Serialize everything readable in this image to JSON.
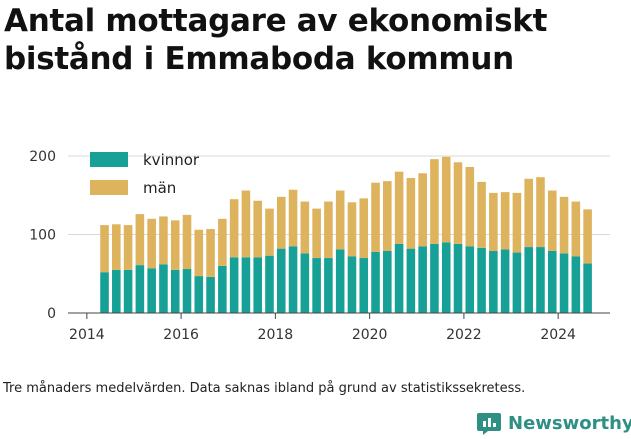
{
  "title": "Antal mottagare av ekonomiskt bistånd i Emmaboda kommun",
  "footnote": "Tre månaders medelvärden. Data saknas ibland på grund av statistikssekretess.",
  "brand": {
    "name": "Newsworthy",
    "icon": "newsworthy-logo-icon"
  },
  "colors": {
    "kvinnor": "#16a096",
    "man": "#deb35e",
    "grid": "#d9d9d9"
  },
  "chart_data": {
    "type": "bar",
    "stacked": true,
    "title": "Antal mottagare av ekonomiskt bistånd i Emmaboda kommun",
    "xlabel": "",
    "ylabel": "",
    "ylim": [
      0,
      200
    ],
    "yticks": [
      0,
      100,
      200
    ],
    "xlim": [
      2013.6,
      2025.1
    ],
    "xticks": [
      "2014",
      "2016",
      "2018",
      "2020",
      "2022",
      "2024"
    ],
    "grid": true,
    "legend_position": "top-left",
    "x": [
      2014.375,
      2014.625,
      2014.875,
      2015.125,
      2015.375,
      2015.625,
      2015.875,
      2016.125,
      2016.375,
      2016.625,
      2016.875,
      2017.125,
      2017.375,
      2017.625,
      2017.875,
      2018.125,
      2018.375,
      2018.625,
      2018.875,
      2019.125,
      2019.375,
      2019.625,
      2019.875,
      2020.125,
      2020.375,
      2020.625,
      2020.875,
      2021.125,
      2021.375,
      2021.625,
      2021.875,
      2022.125,
      2022.375,
      2022.625,
      2022.875,
      2023.125,
      2023.375,
      2023.625,
      2023.875,
      2024.125,
      2024.375,
      2024.625
    ],
    "series": [
      {
        "name": "kvinnor",
        "values": [
          52,
          55,
          55,
          61,
          57,
          62,
          55,
          56,
          47,
          46,
          60,
          71,
          71,
          71,
          73,
          82,
          85,
          76,
          70,
          70,
          81,
          72,
          70,
          78,
          79,
          88,
          82,
          85,
          88,
          90,
          88,
          85,
          83,
          79,
          81,
          77,
          84,
          84,
          79,
          76,
          72,
          63
        ]
      },
      {
        "name": "män",
        "values": [
          60,
          58,
          57,
          65,
          63,
          61,
          63,
          69,
          59,
          61,
          60,
          74,
          85,
          72,
          60,
          66,
          72,
          66,
          63,
          72,
          75,
          69,
          76,
          88,
          89,
          92,
          90,
          93,
          108,
          109,
          104,
          101,
          84,
          74,
          73,
          76,
          87,
          89,
          77,
          72,
          70,
          69
        ]
      }
    ]
  }
}
